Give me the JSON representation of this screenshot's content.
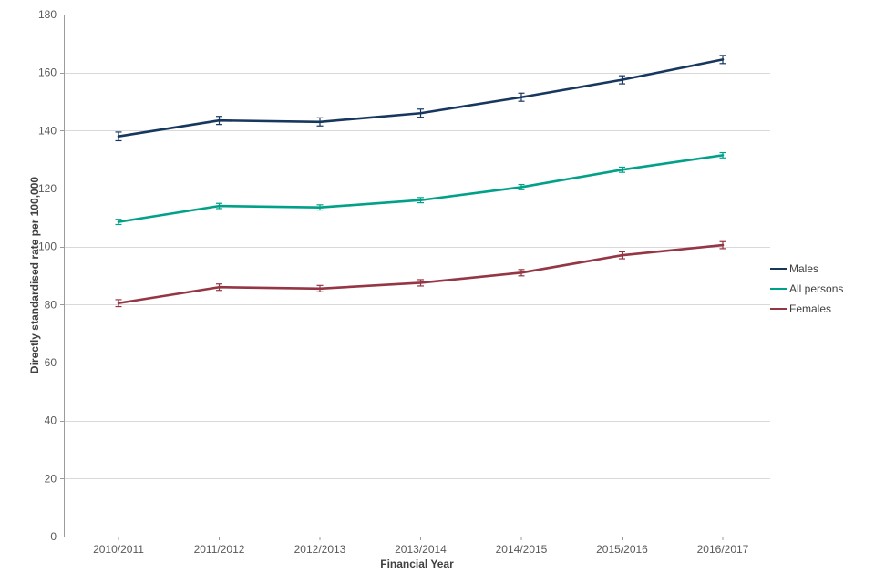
{
  "chart_data": {
    "type": "line",
    "title": "",
    "xlabel": "Financial Year",
    "ylabel": "Directly standardised rate per 100,000",
    "ylim": [
      0,
      180
    ],
    "ytick_step": 20,
    "grid": "horizontal",
    "legend_position": "right",
    "categories": [
      "2010/2011",
      "2011/2012",
      "2012/2013",
      "2013/2014",
      "2014/2015",
      "2015/2016",
      "2016/2017"
    ],
    "series": [
      {
        "name": "Males",
        "color": "#17375e",
        "values": [
          138,
          143.5,
          143,
          146,
          151.5,
          157.5,
          164.5
        ],
        "errors": [
          1.5,
          1.4,
          1.4,
          1.4,
          1.4,
          1.4,
          1.4
        ]
      },
      {
        "name": "All persons",
        "color": "#00a188",
        "values": [
          108.5,
          114,
          113.5,
          116,
          120.5,
          126.5,
          131.5
        ],
        "errors": [
          0.9,
          0.9,
          0.9,
          0.9,
          0.9,
          0.9,
          0.9
        ]
      },
      {
        "name": "Females",
        "color": "#943644",
        "values": [
          80.5,
          86,
          85.5,
          87.5,
          91,
          97,
          100.5
        ],
        "errors": [
          1.2,
          1.1,
          1.1,
          1.1,
          1.1,
          1.2,
          1.2
        ]
      }
    ]
  }
}
